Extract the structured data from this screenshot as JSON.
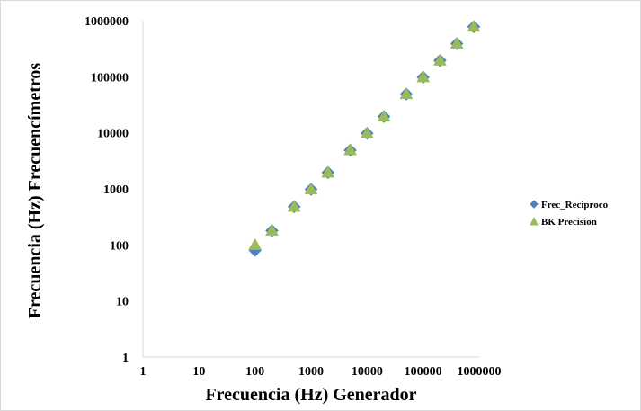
{
  "chart_data": {
    "type": "scatter",
    "title": "",
    "xlabel": "Frecuencia (Hz) Generador",
    "ylabel": "Frecuencia (Hz) Frecuencímetros",
    "x_scale": "log",
    "y_scale": "log",
    "xlim": [
      1,
      1000000
    ],
    "ylim": [
      1,
      1000000
    ],
    "x_ticks": [
      1,
      10,
      100,
      1000,
      10000,
      100000,
      1000000
    ],
    "y_ticks": [
      1,
      10,
      100,
      1000,
      10000,
      100000,
      1000000
    ],
    "x_tick_labels": [
      "1",
      "10",
      "100",
      "1000",
      "10000",
      "100000",
      "1000000"
    ],
    "y_tick_labels": [
      "1",
      "10",
      "100",
      "1000",
      "10000",
      "100000",
      "1000000"
    ],
    "grid": false,
    "legend_position": "right",
    "series": [
      {
        "name": "Frec_Recíproco",
        "marker": "diamond",
        "color": "#4f81bd",
        "x": [
          100,
          200,
          500,
          1000,
          2000,
          5000,
          10000,
          20000,
          50000,
          100000,
          200000,
          400000,
          800000
        ],
        "y": [
          80,
          180,
          480,
          980,
          1950,
          4900,
          9800,
          19500,
          49000,
          98000,
          195000,
          390000,
          780000
        ]
      },
      {
        "name": "BK Precision",
        "marker": "triangle",
        "color": "#9bbb59",
        "x": [
          100,
          200,
          500,
          1000,
          2000,
          5000,
          10000,
          20000,
          50000,
          100000,
          200000,
          400000,
          800000
        ],
        "y": [
          100,
          180,
          480,
          980,
          1950,
          4900,
          9800,
          19500,
          49000,
          98000,
          195000,
          390000,
          780000
        ]
      }
    ]
  }
}
